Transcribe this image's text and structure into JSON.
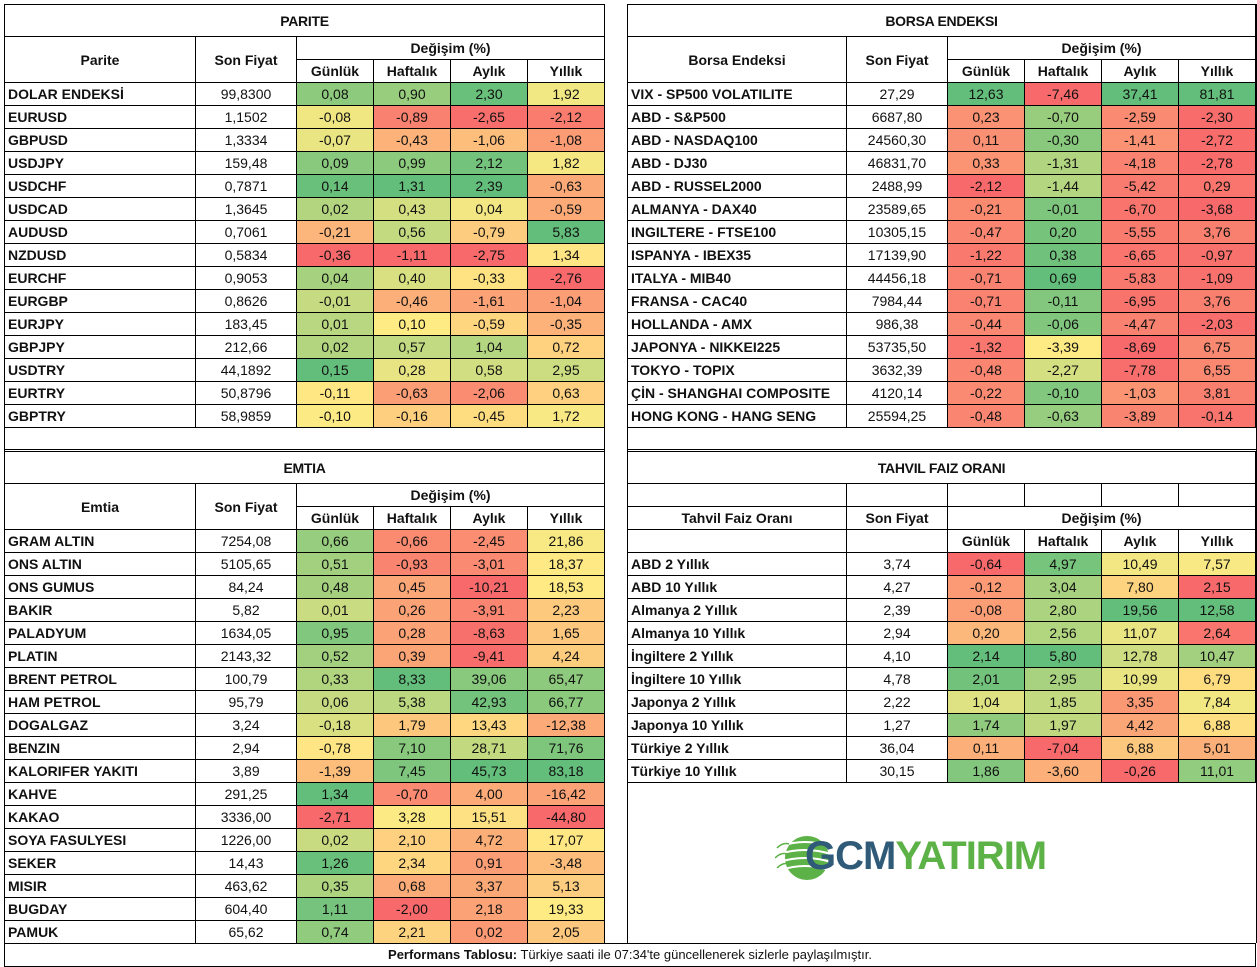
{
  "colors": {
    "green_strong": "#63be7b",
    "red_strong": "#f8696b",
    "yellow_mid": "#ffeb84",
    "logo_blue": "#2f5a78",
    "logo_green": "#5cb246"
  },
  "parite": {
    "title": "PARITE",
    "col_name": "Parite",
    "col_price": "Son Fiyat",
    "col_change": "Değişim (%)",
    "sub": [
      "Günlük",
      "Haftalık",
      "Aylık",
      "Yıllık"
    ],
    "rows": [
      {
        "name": "DOLAR ENDEKSİ",
        "price": "99,8300",
        "d": "0,08",
        "w": "0,90",
        "m": "2,30",
        "y": "1,92"
      },
      {
        "name": "EURUSD",
        "price": "1,1502",
        "d": "-0,08",
        "w": "-0,89",
        "m": "-2,65",
        "y": "-2,12"
      },
      {
        "name": "GBPUSD",
        "price": "1,3334",
        "d": "-0,07",
        "w": "-0,43",
        "m": "-1,06",
        "y": "-1,08"
      },
      {
        "name": "USDJPY",
        "price": "159,48",
        "d": "0,09",
        "w": "0,99",
        "m": "2,12",
        "y": "1,82"
      },
      {
        "name": "USDCHF",
        "price": "0,7871",
        "d": "0,14",
        "w": "1,31",
        "m": "2,39",
        "y": "-0,63"
      },
      {
        "name": "USDCAD",
        "price": "1,3645",
        "d": "0,02",
        "w": "0,43",
        "m": "0,04",
        "y": "-0,59"
      },
      {
        "name": "AUDUSD",
        "price": "0,7061",
        "d": "-0,21",
        "w": "0,56",
        "m": "-0,79",
        "y": "5,83"
      },
      {
        "name": "NZDUSD",
        "price": "0,5834",
        "d": "-0,36",
        "w": "-1,11",
        "m": "-2,75",
        "y": "1,34"
      },
      {
        "name": "EURCHF",
        "price": "0,9053",
        "d": "0,04",
        "w": "0,40",
        "m": "-0,33",
        "y": "-2,76"
      },
      {
        "name": "EURGBP",
        "price": "0,8626",
        "d": "-0,01",
        "w": "-0,46",
        "m": "-1,61",
        "y": "-1,04"
      },
      {
        "name": "EURJPY",
        "price": "183,45",
        "d": "0,01",
        "w": "0,10",
        "m": "-0,59",
        "y": "-0,35"
      },
      {
        "name": "GBPJPY",
        "price": "212,66",
        "d": "0,02",
        "w": "0,57",
        "m": "1,04",
        "y": "0,72"
      },
      {
        "name": "USDTRY",
        "price": "44,1892",
        "d": "0,15",
        "w": "0,28",
        "m": "0,58",
        "y": "2,95"
      },
      {
        "name": "EURTRY",
        "price": "50,8796",
        "d": "-0,11",
        "w": "-0,63",
        "m": "-2,06",
        "y": "0,63"
      },
      {
        "name": "GBPTRY",
        "price": "58,9859",
        "d": "-0,10",
        "w": "-0,16",
        "m": "-0,45",
        "y": "1,72"
      }
    ]
  },
  "borsa": {
    "title": "BORSA ENDEKSI",
    "col_name": "Borsa Endeksi",
    "col_price": "Son Fiyat",
    "col_change": "Değişim (%)",
    "sub": [
      "Günlük",
      "Haftalık",
      "Aylık",
      "Yıllık"
    ],
    "rows": [
      {
        "name": "VIX  - SP500 VOLATILITE",
        "price": "27,29",
        "d": "12,63",
        "w": "-7,46",
        "m": "37,41",
        "y": "81,81"
      },
      {
        "name": "ABD - S&P500",
        "price": "6687,80",
        "d": "0,23",
        "w": "-0,70",
        "m": "-2,59",
        "y": "-2,30"
      },
      {
        "name": "ABD - NASDAQ100",
        "price": "24560,30",
        "d": "0,11",
        "w": "-0,30",
        "m": "-1,41",
        "y": "-2,72"
      },
      {
        "name": "ABD - DJ30",
        "price": "46831,70",
        "d": "0,33",
        "w": "-1,31",
        "m": "-4,18",
        "y": "-2,78"
      },
      {
        "name": "ABD - RUSSEL2000",
        "price": "2488,99",
        "d": "-2,12",
        "w": "-1,44",
        "m": "-5,42",
        "y": "0,29"
      },
      {
        "name": "ALMANYA - DAX40",
        "price": "23589,65",
        "d": "-0,21",
        "w": "-0,01",
        "m": "-6,70",
        "y": "-3,68"
      },
      {
        "name": "INGILTERE - FTSE100",
        "price": "10305,15",
        "d": "-0,47",
        "w": "0,20",
        "m": "-5,55",
        "y": "3,76"
      },
      {
        "name": "ISPANYA - IBEX35",
        "price": "17139,90",
        "d": "-1,22",
        "w": "0,38",
        "m": "-6,65",
        "y": "-0,97"
      },
      {
        "name": "ITALYA - MIB40",
        "price": "44456,18",
        "d": "-0,71",
        "w": "0,69",
        "m": "-5,83",
        "y": "-1,09"
      },
      {
        "name": "FRANSA - CAC40",
        "price": "7984,44",
        "d": "-0,71",
        "w": "-0,11",
        "m": "-6,95",
        "y": "3,76"
      },
      {
        "name": "HOLLANDA - AMX",
        "price": "986,38",
        "d": "-0,44",
        "w": "-0,06",
        "m": "-4,47",
        "y": "-2,03"
      },
      {
        "name": "JAPONYA - NIKKEI225",
        "price": "53735,50",
        "d": "-1,32",
        "w": "-3,39",
        "m": "-8,69",
        "y": "6,75"
      },
      {
        "name": "TOKYO - TOPIX",
        "price": "3632,39",
        "d": "-0,48",
        "w": "-2,27",
        "m": "-7,78",
        "y": "6,55"
      },
      {
        "name": "ÇİN - SHANGHAI COMPOSITE",
        "price": "4120,14",
        "d": "-0,22",
        "w": "-0,10",
        "m": "-1,03",
        "y": "3,81"
      },
      {
        "name": "HONG KONG - HANG SENG",
        "price": "25594,25",
        "d": "-0,48",
        "w": "-0,63",
        "m": "-3,89",
        "y": "-0,14"
      }
    ]
  },
  "emtia": {
    "title": "EMTIA",
    "col_name": "Emtia",
    "col_price": "Son Fiyat",
    "col_change": "Değişim (%)",
    "sub": [
      "Günlük",
      "Haftalık",
      "Aylık",
      "Yıllık"
    ],
    "rows": [
      {
        "name": "GRAM ALTIN",
        "price": "7254,08",
        "d": "0,66",
        "w": "-0,66",
        "m": "-2,45",
        "y": "21,86"
      },
      {
        "name": "ONS ALTIN",
        "price": "5105,65",
        "d": "0,51",
        "w": "-0,93",
        "m": "-3,01",
        "y": "18,37"
      },
      {
        "name": "ONS GUMUS",
        "price": "84,24",
        "d": "0,48",
        "w": "0,45",
        "m": "-10,21",
        "y": "18,53"
      },
      {
        "name": "BAKIR",
        "price": "5,82",
        "d": "0,01",
        "w": "0,26",
        "m": "-3,91",
        "y": "2,23"
      },
      {
        "name": "PALADYUM",
        "price": "1634,05",
        "d": "0,95",
        "w": "0,28",
        "m": "-8,63",
        "y": "1,65"
      },
      {
        "name": "PLATIN",
        "price": "2143,32",
        "d": "0,52",
        "w": "0,39",
        "m": "-9,41",
        "y": "4,24"
      },
      {
        "name": "BRENT PETROL",
        "price": "100,79",
        "d": "0,33",
        "w": "8,33",
        "m": "39,06",
        "y": "65,47"
      },
      {
        "name": "HAM PETROL",
        "price": "95,79",
        "d": "0,06",
        "w": "5,38",
        "m": "42,93",
        "y": "66,77"
      },
      {
        "name": "DOGALGAZ",
        "price": "3,24",
        "d": "-0,18",
        "w": "1,79",
        "m": "13,43",
        "y": "-12,38"
      },
      {
        "name": "BENZIN",
        "price": "2,94",
        "d": "-0,78",
        "w": "7,10",
        "m": "28,71",
        "y": "71,76"
      },
      {
        "name": "KALORIFER YAKITI",
        "price": "3,89",
        "d": "-1,39",
        "w": "7,45",
        "m": "45,73",
        "y": "83,18"
      },
      {
        "name": "KAHVE",
        "price": "291,25",
        "d": "1,34",
        "w": "-0,70",
        "m": "4,00",
        "y": "-16,42"
      },
      {
        "name": "KAKAO",
        "price": "3336,00",
        "d": "-2,71",
        "w": "3,28",
        "m": "15,51",
        "y": "-44,80"
      },
      {
        "name": "SOYA FASULYESI",
        "price": "1226,00",
        "d": "0,02",
        "w": "2,10",
        "m": "4,72",
        "y": "17,07"
      },
      {
        "name": "SEKER",
        "price": "14,43",
        "d": "1,26",
        "w": "2,34",
        "m": "0,91",
        "y": "-3,48"
      },
      {
        "name": "MISIR",
        "price": "463,62",
        "d": "0,35",
        "w": "0,68",
        "m": "3,37",
        "y": "5,13"
      },
      {
        "name": "BUGDAY",
        "price": "604,40",
        "d": "1,11",
        "w": "-2,00",
        "m": "2,18",
        "y": "19,33"
      },
      {
        "name": "PAMUK",
        "price": "65,62",
        "d": "0,74",
        "w": "2,21",
        "m": "0,02",
        "y": "2,05"
      }
    ]
  },
  "tahvil": {
    "title": "TAHVIL FAIZ ORANI",
    "col_name": "Tahvil Faiz Oranı",
    "col_price": "Son Fiyat",
    "col_change": "Değişim (%)",
    "sub": [
      "Günlük",
      "Haftalık",
      "Aylık",
      "Yıllık"
    ],
    "rows": [
      {
        "name": "ABD 2 Yıllık",
        "price": "3,74",
        "d": "-0,64",
        "w": "4,97",
        "m": "10,49",
        "y": "7,57"
      },
      {
        "name": "ABD 10 Yıllık",
        "price": "4,27",
        "d": "-0,12",
        "w": "3,04",
        "m": "7,80",
        "y": "2,15"
      },
      {
        "name": "Almanya 2 Yıllık",
        "price": "2,39",
        "d": "-0,08",
        "w": "2,80",
        "m": "19,56",
        "y": "12,58"
      },
      {
        "name": "Almanya 10 Yıllık",
        "price": "2,94",
        "d": "0,20",
        "w": "2,56",
        "m": "11,07",
        "y": "2,64"
      },
      {
        "name": "İngiltere 2 Yıllık",
        "price": "4,10",
        "d": "2,14",
        "w": "5,80",
        "m": "12,78",
        "y": "10,47"
      },
      {
        "name": "İngiltere 10 Yıllık",
        "price": "4,78",
        "d": "2,01",
        "w": "2,95",
        "m": "10,99",
        "y": "6,79"
      },
      {
        "name": "Japonya 2 Yıllık",
        "price": "2,22",
        "d": "1,04",
        "w": "1,85",
        "m": "3,35",
        "y": "7,84"
      },
      {
        "name": "Japonya 10 Yıllık",
        "price": "1,27",
        "d": "1,74",
        "w": "1,97",
        "m": "4,42",
        "y": "6,88"
      },
      {
        "name": "Türkiye 2 Yıllık",
        "price": "36,04",
        "d": "0,11",
        "w": "-7,04",
        "m": "6,88",
        "y": "5,01"
      },
      {
        "name": "Türkiye 10 Yıllık",
        "price": "30,15",
        "d": "1,86",
        "w": "-3,60",
        "m": "-0,26",
        "y": "11,01"
      }
    ]
  },
  "logo": {
    "part1": "GCM",
    "part2": "YATIRIM"
  },
  "footer": {
    "label": "Performans Tablosu:",
    "text": " Türkiye saati ile 07:34'te güncellenerek sizlerle paylaşılmıştır."
  }
}
